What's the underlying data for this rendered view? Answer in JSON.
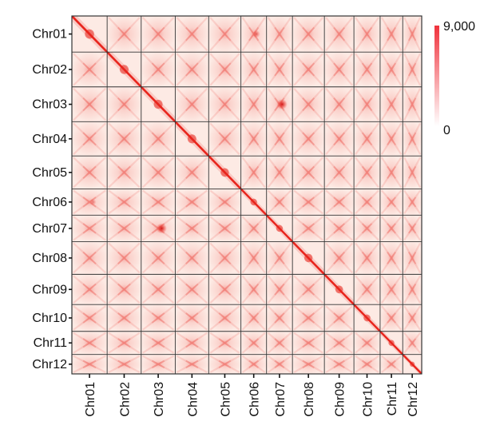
{
  "chart_data": {
    "type": "heatmap",
    "title": "",
    "xlabel": "",
    "ylabel": "",
    "chromosomes": [
      "Chr01",
      "Chr02",
      "Chr03",
      "Chr04",
      "Chr05",
      "Chr06",
      "Chr07",
      "Chr08",
      "Chr09",
      "Chr10",
      "Chr11",
      "Chr12"
    ],
    "relative_sizes": [
      1.17,
      1.13,
      1.13,
      1.11,
      1.07,
      0.85,
      0.86,
      1.06,
      0.98,
      0.87,
      0.75,
      0.63
    ],
    "colorbar": {
      "min": 0,
      "max": 9000,
      "min_label": "0",
      "max_label": "9,000",
      "low_color": "#ffffff",
      "high_color": "#f0323c"
    },
    "diagonal_color": "#e8241c",
    "background_color": "#fdeae4",
    "grid_color": "#333333",
    "hotspots": [
      {
        "row": "Chr03",
        "col": "Chr07",
        "level": 0.9
      },
      {
        "row": "Chr07",
        "col": "Chr03",
        "level": 0.9
      },
      {
        "row": "Chr01",
        "col": "Chr06",
        "level": 0.55
      },
      {
        "row": "Chr06",
        "col": "Chr01",
        "level": 0.4
      }
    ]
  }
}
